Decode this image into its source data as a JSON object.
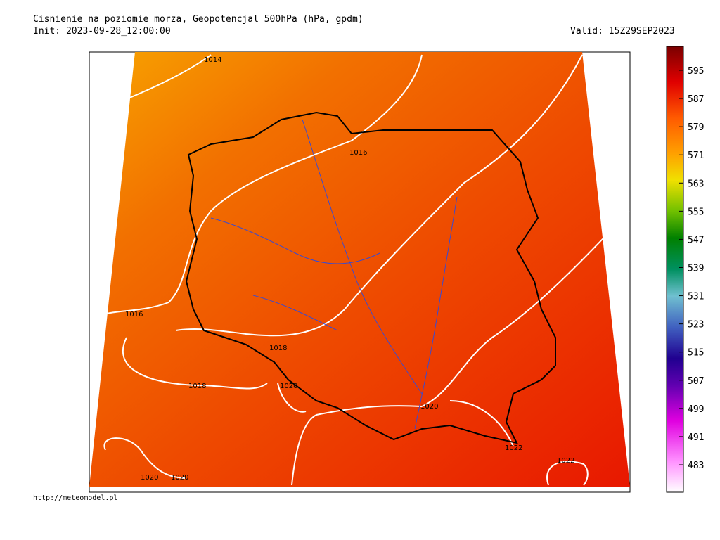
{
  "header": {
    "title": "Cisnienie na poziomie morza, Geopotencjal 500hPa (hPa, gpdm)",
    "init": "Init: 2023-09-28_12:00:00",
    "valid": "Valid: 15Z29SEP2023"
  },
  "colorbar": {
    "ticks": [
      595,
      587,
      579,
      571,
      563,
      555,
      547,
      539,
      531,
      523,
      515,
      507,
      499,
      491,
      483
    ]
  },
  "isobar_labels": [
    "1014",
    "1016",
    "1016",
    "1018",
    "1018",
    "1020",
    "1020",
    "1020",
    "1020",
    "1022",
    "1022"
  ],
  "footer": {
    "url": "http://meteomodel.pl"
  }
}
